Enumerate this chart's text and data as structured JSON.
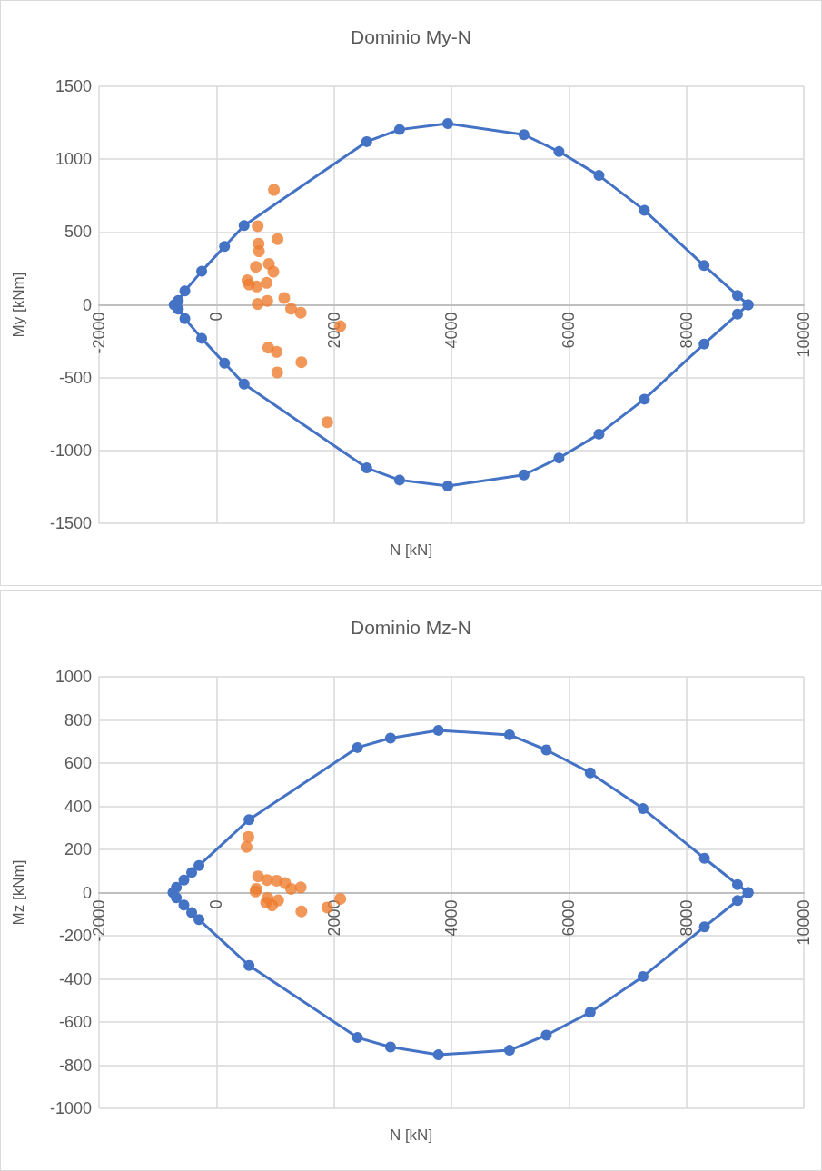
{
  "chart_data": [
    {
      "type": "line",
      "title": "Dominio My-N",
      "xlabel": "N [kN]",
      "ylabel": "My [kNm]",
      "xlim": [
        -2000,
        10000
      ],
      "xticks": [
        -2000,
        0,
        2000,
        4000,
        6000,
        8000,
        10000
      ],
      "ylim": [
        -1500,
        1500
      ],
      "yticks": [
        -1500,
        -1000,
        -500,
        0,
        500,
        1000,
        1500
      ],
      "grid": true,
      "marker": "circle",
      "series": [
        {
          "color": "#4472c4",
          "x": [
            -720,
            -650,
            -538,
            -252,
            138,
            471,
            2558,
            3117,
            3938,
            5235,
            5831,
            6512,
            7286,
            8302,
            8871,
            9051
          ],
          "values": [
            0,
            30,
            95,
            230,
            401,
            544,
            1120,
            1203,
            1244,
            1168,
            1052,
            888,
            648,
            269,
            64,
            0
          ]
        },
        {
          "color": "#4472c4",
          "x": [
            -650,
            -538,
            -252,
            138,
            471,
            2558,
            3117,
            3938,
            5235,
            5831,
            6512,
            7286,
            8302,
            8871,
            9051
          ],
          "values": [
            -30,
            -95,
            -230,
            -401,
            -544,
            -1120,
            -1203,
            -1244,
            -1168,
            -1052,
            -888,
            -648,
            -269,
            -64,
            0
          ]
        },
        {
          "type": "scatter",
          "color": "#ed7d31",
          "x": [
            979,
            702,
            1041,
            717,
            723,
            671,
            892,
            969,
            528,
            554,
            686,
            855,
            1154,
            866,
            702,
            1271,
            1435,
            2108,
            882,
            1025,
            1446,
            1035,
            1886
          ],
          "values": [
            789,
            540,
            451,
            420,
            368,
            261,
            281,
            227,
            168,
            140,
            126,
            151,
            47,
            27,
            6,
            -27,
            -54,
            -147,
            -294,
            -323,
            -394,
            -464,
            -806
          ]
        }
      ]
    },
    {
      "type": "line",
      "title": "Dominio Mz-N",
      "xlabel": "N [kN]",
      "ylabel": "Mz [kNm]",
      "xlim": [
        -2000,
        10000
      ],
      "xticks": [
        -2000,
        0,
        2000,
        4000,
        6000,
        8000,
        10000
      ],
      "ylim": [
        -1000,
        1000
      ],
      "yticks": [
        -1000,
        -800,
        -600,
        -400,
        -200,
        0,
        200,
        400,
        600,
        800,
        1000
      ],
      "grid": true,
      "marker": "circle",
      "series": [
        {
          "color": "#4472c4",
          "x": [
            -740,
            -683,
            -554,
            -422,
            -298,
            554,
            2400,
            2963,
            3778,
            4989,
            5615,
            6363,
            7262,
            8308,
            8871,
            9051
          ],
          "values": [
            0,
            24,
            58,
            93,
            125,
            338,
            672,
            716,
            752,
            731,
            661,
            555,
            389,
            159,
            37,
            0
          ]
        },
        {
          "color": "#4472c4",
          "x": [
            -683,
            -554,
            -422,
            -298,
            554,
            2400,
            2963,
            3778,
            4989,
            5615,
            6363,
            7262,
            8308,
            8871,
            9051
          ],
          "values": [
            -24,
            -58,
            -93,
            -125,
            -338,
            -672,
            -716,
            -752,
            -731,
            -661,
            -555,
            -389,
            -159,
            -37,
            0
          ]
        },
        {
          "type": "scatter",
          "color": "#ed7d31",
          "x": [
            543,
            512,
            708,
            862,
            1025,
            1169,
            1271,
            1435,
            677,
            666,
            871,
            1051,
            846,
            948,
            1446,
            1886,
            2108
          ],
          "values": [
            258,
            212,
            75,
            58,
            55,
            44,
            17,
            24,
            17,
            5,
            -25,
            -36,
            -46,
            -59,
            -87,
            -69,
            -29
          ]
        }
      ]
    }
  ]
}
